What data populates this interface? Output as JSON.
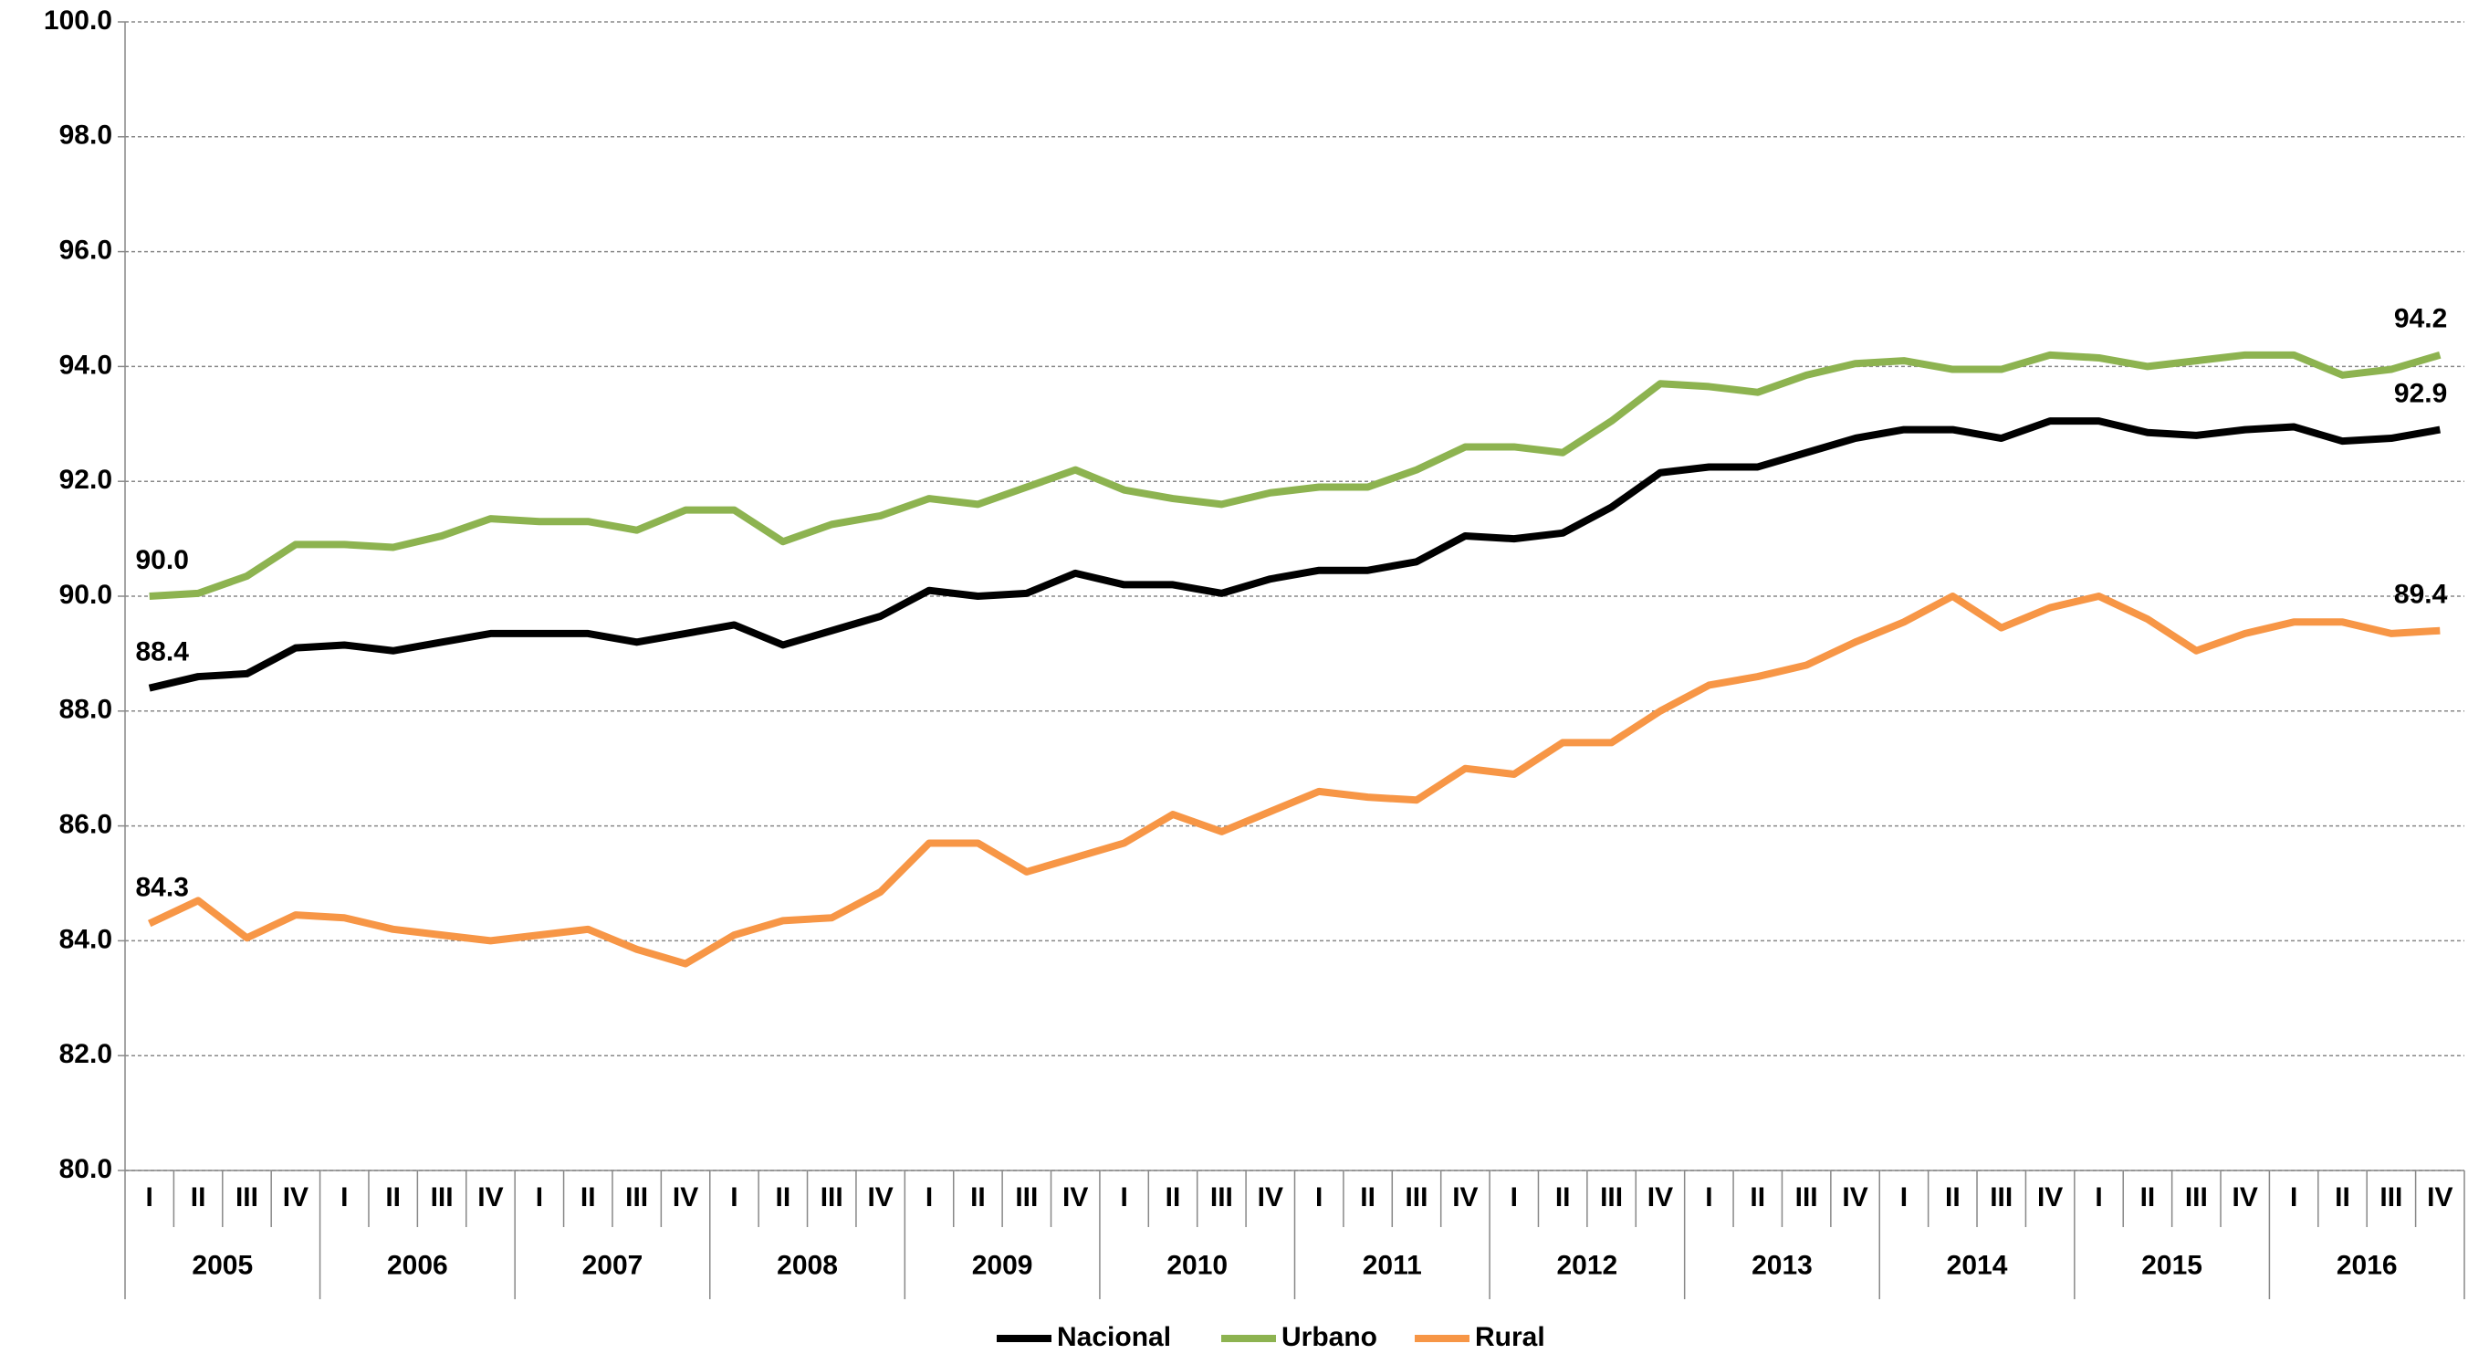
{
  "chart_data": {
    "type": "line",
    "categories": [
      "I",
      "II",
      "III",
      "IV",
      "I",
      "II",
      "III",
      "IV",
      "I",
      "II",
      "III",
      "IV",
      "I",
      "II",
      "III",
      "IV",
      "I",
      "II",
      "III",
      "IV",
      "I",
      "II",
      "III",
      "IV",
      "I",
      "II",
      "III",
      "IV",
      "I",
      "II",
      "III",
      "IV",
      "I",
      "II",
      "III",
      "IV",
      "I",
      "II",
      "III",
      "IV",
      "I",
      "II",
      "III",
      "IV",
      "I",
      "II",
      "III",
      "IV"
    ],
    "x_groups": [
      "2005",
      "2006",
      "2007",
      "2008",
      "2009",
      "2010",
      "2011",
      "2012",
      "2013",
      "2014",
      "2015",
      "2016"
    ],
    "series": [
      {
        "name": "Nacional",
        "color": "#000000",
        "values": [
          88.4,
          88.6,
          88.65,
          89.1,
          89.15,
          89.05,
          89.2,
          89.35,
          89.35,
          89.35,
          89.2,
          89.35,
          89.5,
          89.15,
          89.4,
          89.65,
          90.1,
          90.0,
          90.05,
          90.4,
          90.2,
          90.2,
          90.05,
          90.3,
          90.45,
          90.45,
          90.6,
          91.05,
          91.0,
          91.1,
          91.55,
          92.15,
          92.25,
          92.25,
          92.5,
          92.75,
          92.9,
          92.9,
          92.75,
          93.05,
          93.05,
          92.85,
          92.8,
          92.9,
          92.95,
          92.7,
          92.75,
          92.9
        ],
        "value_labels": [
          "88.4",
          null,
          null,
          null,
          null,
          null,
          null,
          null,
          null,
          null,
          null,
          null,
          null,
          null,
          null,
          null,
          null,
          null,
          null,
          null,
          null,
          null,
          null,
          null,
          null,
          null,
          null,
          null,
          null,
          null,
          null,
          null,
          null,
          null,
          null,
          null,
          null,
          null,
          null,
          null,
          null,
          null,
          null,
          null,
          null,
          null,
          null,
          "92.9"
        ]
      },
      {
        "name": "Urbano",
        "color": "#8db350",
        "values": [
          90.0,
          90.05,
          90.35,
          90.9,
          90.9,
          90.85,
          91.05,
          91.35,
          91.3,
          91.3,
          91.15,
          91.5,
          91.5,
          90.95,
          91.25,
          91.4,
          91.7,
          91.6,
          91.9,
          92.2,
          91.85,
          91.7,
          91.6,
          91.8,
          91.9,
          91.9,
          92.2,
          92.6,
          92.6,
          92.5,
          93.05,
          93.7,
          93.65,
          93.55,
          93.85,
          94.05,
          94.1,
          93.95,
          93.95,
          94.2,
          94.15,
          94.0,
          94.1,
          94.2,
          94.2,
          93.85,
          93.95,
          94.2
        ],
        "value_labels": [
          "90.0",
          null,
          null,
          null,
          null,
          null,
          null,
          null,
          null,
          null,
          null,
          null,
          null,
          null,
          null,
          null,
          null,
          null,
          null,
          null,
          null,
          null,
          null,
          null,
          null,
          null,
          null,
          null,
          null,
          null,
          null,
          null,
          null,
          null,
          null,
          null,
          null,
          null,
          null,
          null,
          null,
          null,
          null,
          null,
          null,
          null,
          null,
          "94.2"
        ]
      },
      {
        "name": "Rural",
        "color": "#f79646",
        "values": [
          84.3,
          84.7,
          84.05,
          84.45,
          84.4,
          84.2,
          84.1,
          84.0,
          84.1,
          84.2,
          83.85,
          83.6,
          84.1,
          84.35,
          84.4,
          84.85,
          85.7,
          85.7,
          85.2,
          85.45,
          85.7,
          86.2,
          85.9,
          86.25,
          86.6,
          86.5,
          86.45,
          87.0,
          86.9,
          87.45,
          87.45,
          88.0,
          88.45,
          88.6,
          88.8,
          89.2,
          89.55,
          90.0,
          89.45,
          89.8,
          90.0,
          89.6,
          89.05,
          89.35,
          89.55,
          89.55,
          89.35,
          89.4
        ],
        "value_labels": [
          "84.3",
          null,
          null,
          null,
          null,
          null,
          null,
          null,
          null,
          null,
          null,
          null,
          null,
          null,
          null,
          null,
          null,
          null,
          null,
          null,
          null,
          null,
          null,
          null,
          null,
          null,
          null,
          null,
          null,
          null,
          null,
          null,
          null,
          null,
          null,
          null,
          null,
          null,
          null,
          null,
          null,
          null,
          null,
          null,
          null,
          null,
          null,
          "89.4"
        ]
      }
    ],
    "ylim": [
      80,
      100
    ],
    "yticks": [
      {
        "value": 80,
        "label": "80.0"
      },
      {
        "value": 82,
        "label": "82.0"
      },
      {
        "value": 84,
        "label": "84.0"
      },
      {
        "value": 86,
        "label": "86.0"
      },
      {
        "value": 88,
        "label": "88.0"
      },
      {
        "value": 90,
        "label": "90.0"
      },
      {
        "value": 92,
        "label": "92.0"
      },
      {
        "value": 94,
        "label": "94.0"
      },
      {
        "value": 96,
        "label": "96.0"
      },
      {
        "value": 98,
        "label": "98.0"
      },
      {
        "value": 100,
        "label": "100.0"
      }
    ],
    "grid": true,
    "legend": "bottom"
  }
}
